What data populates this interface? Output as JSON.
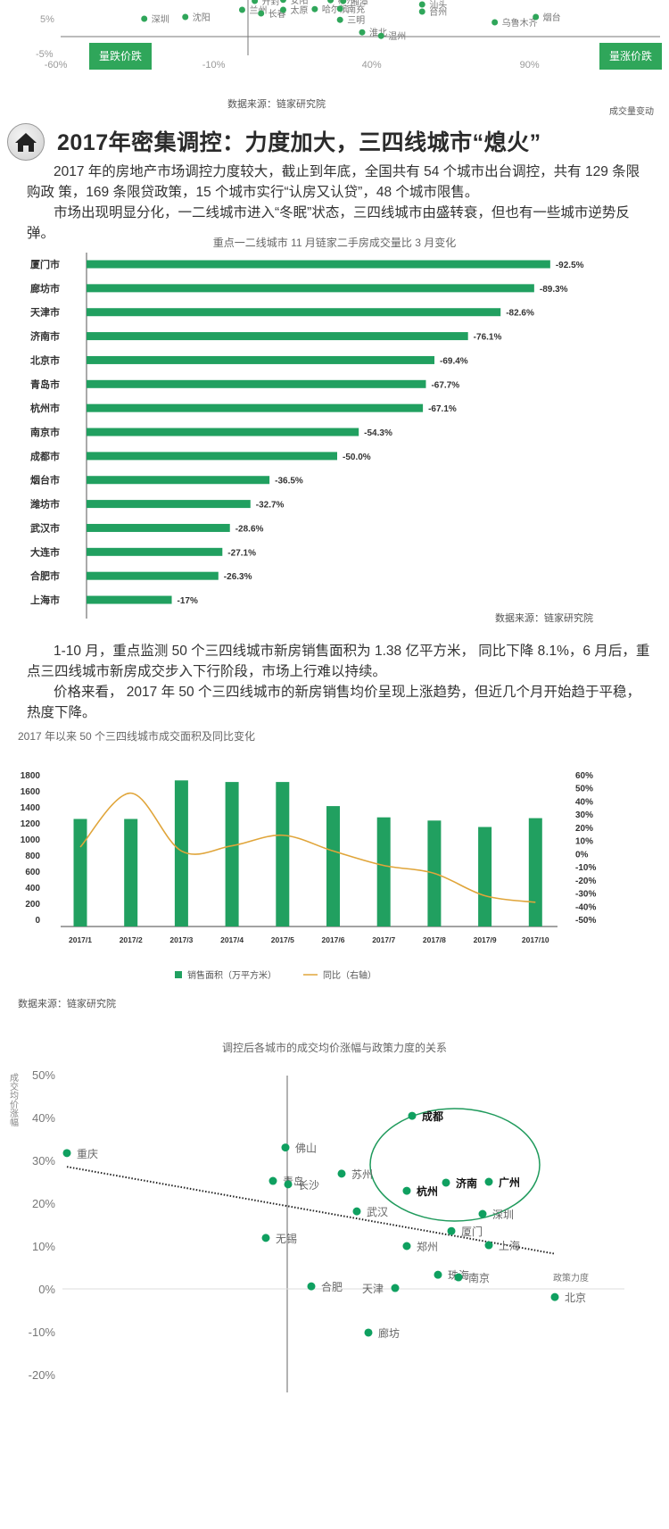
{
  "top_scatter": {
    "x_ticks": [
      "-60%",
      "-10%",
      "40%",
      "90%"
    ],
    "y_ticks": [
      "5%",
      "-5%"
    ],
    "quadrant_left": "量跌价跌",
    "quadrant_right": "量涨价跌",
    "x_axis_label": "成交量变动",
    "source": "数据来源：链家研究院",
    "color": "#2fa65a",
    "points": [
      {
        "name": "深圳",
        "x": -32,
        "y": 5
      },
      {
        "name": "沈阳",
        "x": -19,
        "y": 5.5
      },
      {
        "name": "兰州",
        "x": -1,
        "y": 7.5
      },
      {
        "name": "长春",
        "x": 5,
        "y": 6.5
      },
      {
        "name": "太原",
        "x": 12,
        "y": 7.5
      },
      {
        "name": "哈尔滨",
        "x": 22,
        "y": 7.7
      },
      {
        "name": "南充",
        "x": 30,
        "y": 7.8
      },
      {
        "name": "开封",
        "x": 3,
        "y": 10
      },
      {
        "name": "安阳",
        "x": 12,
        "y": 10.3
      },
      {
        "name": "郴州",
        "x": 27,
        "y": 10.2
      },
      {
        "name": "湘潭",
        "x": 31,
        "y": 10
      },
      {
        "name": "三明",
        "x": 30,
        "y": 4.7
      },
      {
        "name": "淮北",
        "x": 37,
        "y": 1.2
      },
      {
        "name": "温州",
        "x": 43,
        "y": 0.2
      },
      {
        "name": "汕头",
        "x": 56,
        "y": 9
      },
      {
        "name": "台州",
        "x": 56,
        "y": 7
      },
      {
        "name": "乌鲁木齐",
        "x": 79,
        "y": 4
      },
      {
        "name": "烟台",
        "x": 92,
        "y": 5.5
      }
    ]
  },
  "section": {
    "icon": "home-icon",
    "title": "2017年密集调控：力度加大，三四线城市“熄火”",
    "para1": "2017 年的房地产市场调控力度较大，截止到年底，全国共有 54 个城市出台调控，共有 129 条限购政 策，169 条限贷政策，15 个城市实行“认房又认贷”，48 个城市限售。",
    "para2": "市场出现明显分化，一二线城市进入“冬眠”状态，三四线城市由盛转衰，但也有一些城市逆势反弹。",
    "para3": "1-10 月，重点监测 50 个三四线城市新房销售面积为 1.38 亿平方米， 同比下降 8.1%，6 月后，重点三四线城市新房成交步入下行阶段，市场上行难以持续。",
    "para4": "价格来看， 2017 年 50 个三四线城市的新房销售均价呈现上涨趋势，但近几个月开始趋于平稳，热度下降。"
  },
  "chart_data": [
    {
      "type": "bar",
      "orientation": "horizontal",
      "title": "重点一二线城市 11 月链家二手房成交量比 3 月变化",
      "source": "数据来源：链家研究院",
      "color": "#21a060",
      "categories": [
        "厦门市",
        "廊坊市",
        "天津市",
        "济南市",
        "北京市",
        "青岛市",
        "杭州市",
        "南京市",
        "成都市",
        "烟台市",
        "潍坊市",
        "武汉市",
        "大连市",
        "合肥市",
        "上海市"
      ],
      "values": [
        -92.5,
        -89.3,
        -82.6,
        -76.1,
        -69.4,
        -67.7,
        -67.1,
        -54.3,
        -50.0,
        -36.5,
        -32.7,
        -28.6,
        -27.1,
        -26.3,
        -17
      ],
      "labels": [
        "-92.5%",
        "-89.3%",
        "-82.6%",
        "-76.1%",
        "-69.4%",
        "-67.7%",
        "-67.1%",
        "-54.3%",
        "-50.0%",
        "-36.5%",
        "-32.7%",
        "-28.6%",
        "-27.1%",
        "-26.3%",
        "-17%"
      ]
    },
    {
      "type": "bar+line",
      "title": "2017 年以来 50 个三四线城市成交面积及同比变化",
      "source": "数据来源：链家研究院",
      "categories": [
        "2017/1",
        "2017/2",
        "2017/3",
        "2017/4",
        "2017/5",
        "2017/6",
        "2017/7",
        "2017/8",
        "2017/9",
        "2017/10"
      ],
      "left_ticks": [
        "1800",
        "1600",
        "1400",
        "1200",
        "1000",
        "800",
        "600",
        "400",
        "200",
        "0"
      ],
      "right_ticks": [
        "60%",
        "50%",
        "40%",
        "30%",
        "20%",
        "10%",
        "0%",
        "-10%",
        "-20%",
        "-30%",
        "-40%",
        "-50%"
      ],
      "ylim_left": [
        0,
        1800
      ],
      "ylim_right": [
        -50,
        60
      ],
      "series": [
        {
          "name": "销售面积（万平方米）",
          "type": "bar",
          "color": "#21a060",
          "values": [
            1250,
            1250,
            1730,
            1710,
            1710,
            1410,
            1270,
            1230,
            1150,
            1260
          ]
        },
        {
          "name": "同比（右轴）",
          "type": "line",
          "color": "#e0a53a",
          "values": [
            5,
            46,
            2,
            6,
            14,
            2,
            -9,
            -15,
            -32,
            -37
          ]
        }
      ]
    },
    {
      "type": "scatter",
      "title": "调控后各城市的成交均价涨幅与政策力度的关系",
      "ylabel": "成交均价涨幅",
      "xlabel": "政策力度",
      "y_ticks": [
        "50%",
        "40%",
        "30%",
        "20%",
        "10%",
        "0%",
        "-10%",
        "-20%"
      ],
      "ylim": [
        -20,
        50
      ],
      "color": "#0fa060",
      "trend": {
        "from": [
          -24.7,
          28.5
        ],
        "to": [
          30,
          8.2
        ]
      },
      "points": [
        {
          "name": "重庆",
          "x": -24.7,
          "y": 31.7
        },
        {
          "name": "佛山",
          "x": -0.2,
          "y": 33
        },
        {
          "name": "苏州",
          "x": 6.1,
          "y": 26.9
        },
        {
          "name": "青岛",
          "x": -1.6,
          "y": 25.2
        },
        {
          "name": "长沙",
          "x": 0.1,
          "y": 24.4
        },
        {
          "name": "成都",
          "x": 14,
          "y": 40.4,
          "highlight": true
        },
        {
          "name": "杭州",
          "x": 13.4,
          "y": 22.9,
          "highlight": true
        },
        {
          "name": "济南",
          "x": 17.8,
          "y": 24.8,
          "highlight": true
        },
        {
          "name": "广州",
          "x": 22.6,
          "y": 25,
          "highlight": true
        },
        {
          "name": "武汉",
          "x": 7.8,
          "y": 18.1
        },
        {
          "name": "深圳",
          "x": 21.9,
          "y": 17.5
        },
        {
          "name": "厦门",
          "x": 18.4,
          "y": 13.5
        },
        {
          "name": "无锡",
          "x": -2.4,
          "y": 11.9
        },
        {
          "name": "郑州",
          "x": 13.4,
          "y": 10
        },
        {
          "name": "上海",
          "x": 22.6,
          "y": 10.2
        },
        {
          "name": "珠海",
          "x": 16.9,
          "y": 3.3
        },
        {
          "name": "南京",
          "x": 19.2,
          "y": 2.7
        },
        {
          "name": "天津",
          "x": 12.1,
          "y": 0.2
        },
        {
          "name": "合肥",
          "x": 2.7,
          "y": 0.6
        },
        {
          "name": "北京",
          "x": 30,
          "y": -1.9
        },
        {
          "name": "廊坊",
          "x": 9.1,
          "y": -10.2
        }
      ]
    }
  ]
}
